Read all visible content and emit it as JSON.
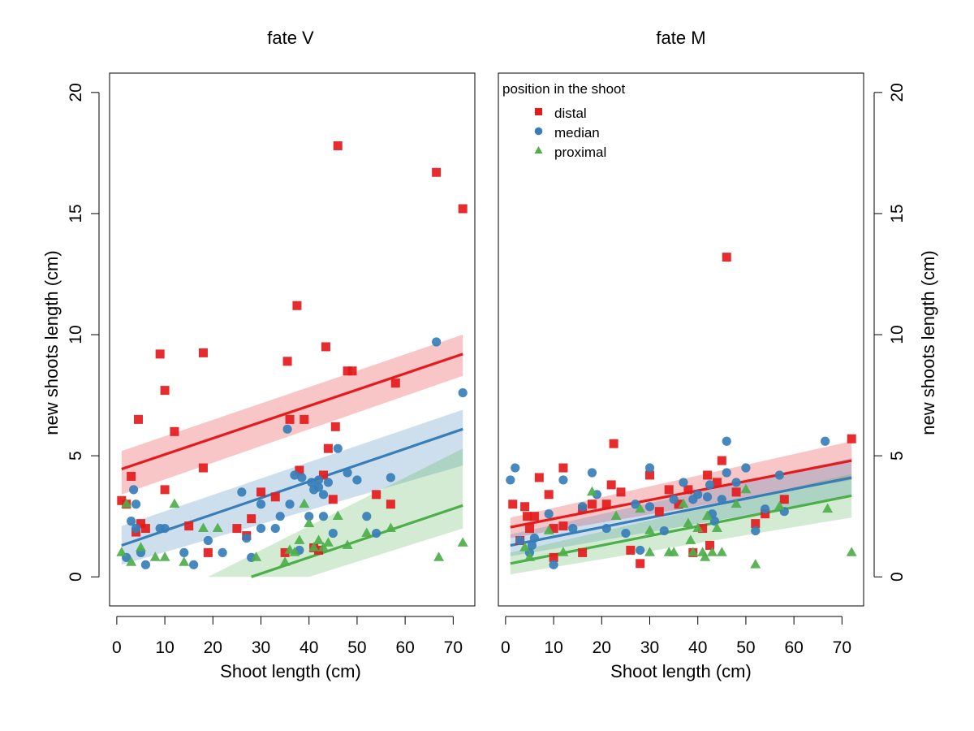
{
  "chart_data": [
    {
      "type": "scatter",
      "title": "fate V",
      "xlabel": "Shoot length (cm)",
      "ylabel": "new shoots length (cm)",
      "xlim": [
        -1.5,
        74.5
      ],
      "ylim": [
        -1.2,
        20.8
      ],
      "xticks": [
        0,
        10,
        20,
        30,
        40,
        50,
        60,
        70
      ],
      "yticks": [
        0,
        5,
        10,
        15,
        20
      ],
      "y_axis_side": "left",
      "series": [
        {
          "name": "distal",
          "color": "#e41a1c",
          "marker": "square",
          "points": [
            [
              1,
              3.15
            ],
            [
              2,
              3.0
            ],
            [
              3,
              4.15
            ],
            [
              4,
              1.85
            ],
            [
              4.5,
              6.5
            ],
            [
              5,
              2.2
            ],
            [
              6,
              2.0
            ],
            [
              9,
              9.2
            ],
            [
              10,
              7.7
            ],
            [
              10,
              3.6
            ],
            [
              12,
              6.0
            ],
            [
              15,
              2.1
            ],
            [
              18,
              9.25
            ],
            [
              18,
              4.5
            ],
            [
              19,
              1.0
            ],
            [
              25,
              2.0
            ],
            [
              27,
              1.7
            ],
            [
              28,
              2.4
            ],
            [
              30,
              3.5
            ],
            [
              33,
              3.3
            ],
            [
              35,
              1.0
            ],
            [
              35.5,
              8.9
            ],
            [
              36,
              6.5
            ],
            [
              37.5,
              11.2
            ],
            [
              38,
              4.4
            ],
            [
              39,
              6.5
            ],
            [
              41,
              1.2
            ],
            [
              42,
              1.1
            ],
            [
              43,
              4.2
            ],
            [
              43.5,
              9.5
            ],
            [
              44,
              5.3
            ],
            [
              45,
              3.2
            ],
            [
              45.5,
              6.2
            ],
            [
              46,
              17.8
            ],
            [
              48,
              8.5
            ],
            [
              49,
              8.5
            ],
            [
              54,
              3.4
            ],
            [
              57,
              3.0
            ],
            [
              58,
              8.0
            ],
            [
              66.5,
              16.7
            ],
            [
              72,
              15.2
            ]
          ]
        },
        {
          "name": "median",
          "color": "#377eb8",
          "marker": "circle",
          "points": [
            [
              2,
              0.8
            ],
            [
              3,
              2.3
            ],
            [
              3.5,
              3.6
            ],
            [
              4,
              3.0
            ],
            [
              4,
              2.0
            ],
            [
              5,
              1.0
            ],
            [
              6,
              0.5
            ],
            [
              9,
              2.0
            ],
            [
              10,
              2.0
            ],
            [
              14,
              1.0
            ],
            [
              16,
              0.5
            ],
            [
              19,
              1.5
            ],
            [
              22,
              1.0
            ],
            [
              26,
              3.5
            ],
            [
              27,
              1.6
            ],
            [
              28,
              0.8
            ],
            [
              30,
              2.0
            ],
            [
              30,
              3.0
            ],
            [
              33,
              2.0
            ],
            [
              34,
              2.5
            ],
            [
              35.5,
              6.1
            ],
            [
              36,
              3.0
            ],
            [
              37,
              4.2
            ],
            [
              38,
              1.1
            ],
            [
              38.5,
              4.1
            ],
            [
              40,
              2.5
            ],
            [
              40.5,
              3.9
            ],
            [
              41,
              3.6
            ],
            [
              42,
              4.0
            ],
            [
              42,
              3.7
            ],
            [
              43,
              3.4
            ],
            [
              43,
              2.5
            ],
            [
              44,
              3.9
            ],
            [
              45,
              1.8
            ],
            [
              46,
              5.3
            ],
            [
              48,
              4.3
            ],
            [
              50,
              4.0
            ],
            [
              52,
              2.5
            ],
            [
              54,
              1.8
            ],
            [
              57,
              4.1
            ],
            [
              66.5,
              9.7
            ],
            [
              72,
              7.6
            ]
          ]
        },
        {
          "name": "proximal",
          "color": "#4daf4a",
          "marker": "triangle",
          "points": [
            [
              1,
              1.0
            ],
            [
              2,
              3.0
            ],
            [
              3,
              0.6
            ],
            [
              5,
              1.2
            ],
            [
              8,
              0.8
            ],
            [
              10,
              0.8
            ],
            [
              12,
              3.0
            ],
            [
              14,
              0.6
            ],
            [
              18,
              2.0
            ],
            [
              21,
              2.0
            ],
            [
              29,
              0.8
            ],
            [
              35,
              0.6
            ],
            [
              36,
              1.1
            ],
            [
              37,
              1.0
            ],
            [
              38,
              1.5
            ],
            [
              39,
              3.0
            ],
            [
              40,
              2.2
            ],
            [
              41,
              1.2
            ],
            [
              42,
              1.5
            ],
            [
              43,
              1.2
            ],
            [
              44,
              1.4
            ],
            [
              46,
              2.5
            ],
            [
              48,
              1.3
            ],
            [
              52,
              1.8
            ],
            [
              57,
              2.0
            ],
            [
              67,
              0.8
            ],
            [
              72,
              1.4
            ]
          ]
        }
      ],
      "fits": [
        {
          "name": "distal",
          "color": "#e41a1c",
          "line": [
            [
              1,
              4.45
            ],
            [
              72,
              9.2
            ]
          ],
          "band_low": [
            [
              1,
              3.4
            ],
            [
              72,
              8.3
            ]
          ],
          "band_high": [
            [
              1,
              5.2
            ],
            [
              72,
              10.0
            ]
          ]
        },
        {
          "name": "median",
          "color": "#377eb8",
          "line": [
            [
              1,
              1.3
            ],
            [
              72,
              6.1
            ]
          ],
          "band_low": [
            [
              1,
              0.5
            ],
            [
              72,
              4.6
            ]
          ],
          "band_high": [
            [
              1,
              2.1
            ],
            [
              72,
              6.9
            ]
          ]
        },
        {
          "name": "proximal",
          "color": "#4daf4a",
          "line": [
            [
              28,
              0.0
            ],
            [
              72,
              2.95
            ]
          ],
          "band_low": [
            [
              1,
              0.0
            ],
            [
              40,
              0.0
            ],
            [
              72,
              2.0
            ]
          ],
          "band_high": [
            [
              1,
              0.0
            ],
            [
              19,
              0.0
            ],
            [
              72,
              5.3
            ]
          ]
        }
      ]
    },
    {
      "type": "scatter",
      "title": "fate M",
      "xlabel": "Shoot length (cm)",
      "ylabel": "new shoots length (cm)",
      "xlim": [
        -1.5,
        74.5
      ],
      "ylim": [
        -1.2,
        20.8
      ],
      "xticks": [
        0,
        10,
        20,
        30,
        40,
        50,
        60,
        70
      ],
      "yticks": [
        0,
        5,
        10,
        15,
        20
      ],
      "y_axis_side": "right",
      "legend": {
        "title": "position in the shoot",
        "placement": "top-left",
        "entries": [
          "distal",
          "median",
          "proximal"
        ]
      },
      "series": [
        {
          "name": "distal",
          "color": "#e41a1c",
          "marker": "square",
          "points": [
            [
              1.5,
              3.0
            ],
            [
              3,
              1.5
            ],
            [
              4,
              2.9
            ],
            [
              4.5,
              2.5
            ],
            [
              5,
              2.0
            ],
            [
              6,
              2.5
            ],
            [
              7,
              4.1
            ],
            [
              9,
              3.4
            ],
            [
              10,
              0.8
            ],
            [
              10,
              2.0
            ],
            [
              12,
              4.5
            ],
            [
              12,
              2.1
            ],
            [
              16,
              1.0
            ],
            [
              16,
              2.8
            ],
            [
              18,
              3.0
            ],
            [
              21,
              3.0
            ],
            [
              22,
              3.8
            ],
            [
              22.5,
              5.5
            ],
            [
              24,
              3.5
            ],
            [
              26,
              1.1
            ],
            [
              28,
              0.55
            ],
            [
              30,
              4.2
            ],
            [
              32,
              2.7
            ],
            [
              34,
              3.6
            ],
            [
              36,
              3.0
            ],
            [
              38,
              3.6
            ],
            [
              39,
              1.0
            ],
            [
              41,
              2.0
            ],
            [
              42,
              4.2
            ],
            [
              42.5,
              1.3
            ],
            [
              44,
              3.9
            ],
            [
              45,
              4.8
            ],
            [
              46,
              13.2
            ],
            [
              48,
              3.5
            ],
            [
              52,
              2.2
            ],
            [
              54,
              2.6
            ],
            [
              58,
              3.2
            ],
            [
              72,
              5.7
            ]
          ]
        },
        {
          "name": "median",
          "color": "#377eb8",
          "marker": "circle",
          "points": [
            [
              1,
              4.0
            ],
            [
              2,
              4.5
            ],
            [
              3,
              1.5
            ],
            [
              5,
              1.0
            ],
            [
              5.5,
              1.3
            ],
            [
              6,
              1.6
            ],
            [
              9,
              2.6
            ],
            [
              10,
              0.5
            ],
            [
              12,
              4.0
            ],
            [
              14,
              2.0
            ],
            [
              16,
              2.9
            ],
            [
              18,
              4.3
            ],
            [
              19,
              3.4
            ],
            [
              21,
              2.0
            ],
            [
              25,
              1.8
            ],
            [
              27,
              3.0
            ],
            [
              28,
              1.1
            ],
            [
              30,
              4.5
            ],
            [
              30,
              2.9
            ],
            [
              33,
              1.9
            ],
            [
              35,
              3.2
            ],
            [
              37,
              3.9
            ],
            [
              39,
              3.2
            ],
            [
              40,
              3.4
            ],
            [
              42,
              3.3
            ],
            [
              42.5,
              3.8
            ],
            [
              43,
              2.6
            ],
            [
              43.5,
              2.3
            ],
            [
              45,
              3.2
            ],
            [
              46,
              4.3
            ],
            [
              46,
              5.6
            ],
            [
              48,
              3.9
            ],
            [
              50,
              4.5
            ],
            [
              52,
              1.9
            ],
            [
              54,
              2.8
            ],
            [
              57,
              4.2
            ],
            [
              58,
              2.7
            ],
            [
              66.5,
              5.6
            ]
          ]
        },
        {
          "name": "proximal",
          "color": "#4daf4a",
          "marker": "triangle",
          "points": [
            [
              4,
              1.2
            ],
            [
              5,
              0.8
            ],
            [
              9,
              1.9
            ],
            [
              12,
              1.0
            ],
            [
              18,
              3.5
            ],
            [
              23,
              2.5
            ],
            [
              28,
              2.8
            ],
            [
              30,
              1.0
            ],
            [
              30,
              1.9
            ],
            [
              34,
              1.0
            ],
            [
              35,
              1.0
            ],
            [
              37,
              3.0
            ],
            [
              38,
              2.2
            ],
            [
              38.5,
              1.5
            ],
            [
              39,
              1.0
            ],
            [
              40,
              2.0
            ],
            [
              41,
              1.0
            ],
            [
              41.5,
              0.8
            ],
            [
              42,
              2.5
            ],
            [
              43,
              1.0
            ],
            [
              44,
              2.0
            ],
            [
              45,
              1.0
            ],
            [
              48,
              3.0
            ],
            [
              50,
              3.6
            ],
            [
              52,
              0.5
            ],
            [
              57,
              2.9
            ],
            [
              67,
              2.8
            ],
            [
              72,
              1.0
            ]
          ]
        }
      ],
      "fits": [
        {
          "name": "distal",
          "color": "#e41a1c",
          "line": [
            [
              1,
              2.05
            ],
            [
              72,
              4.8
            ]
          ],
          "band_low": [
            [
              1,
              1.6
            ],
            [
              72,
              4.0
            ]
          ],
          "band_high": [
            [
              1,
              2.45
            ],
            [
              72,
              5.6
            ]
          ]
        },
        {
          "name": "median",
          "color": "#377eb8",
          "line": [
            [
              1,
              1.3
            ],
            [
              72,
              4.1
            ]
          ],
          "band_low": [
            [
              1,
              0.85
            ],
            [
              72,
              3.3
            ]
          ],
          "band_high": [
            [
              1,
              1.75
            ],
            [
              72,
              4.9
            ]
          ]
        },
        {
          "name": "proximal",
          "color": "#4daf4a",
          "line": [
            [
              1,
              0.55
            ],
            [
              72,
              3.35
            ]
          ],
          "band_low": [
            [
              1,
              0.1
            ],
            [
              72,
              2.45
            ]
          ],
          "band_high": [
            [
              1,
              1.0
            ],
            [
              72,
              4.25
            ]
          ]
        }
      ]
    }
  ]
}
